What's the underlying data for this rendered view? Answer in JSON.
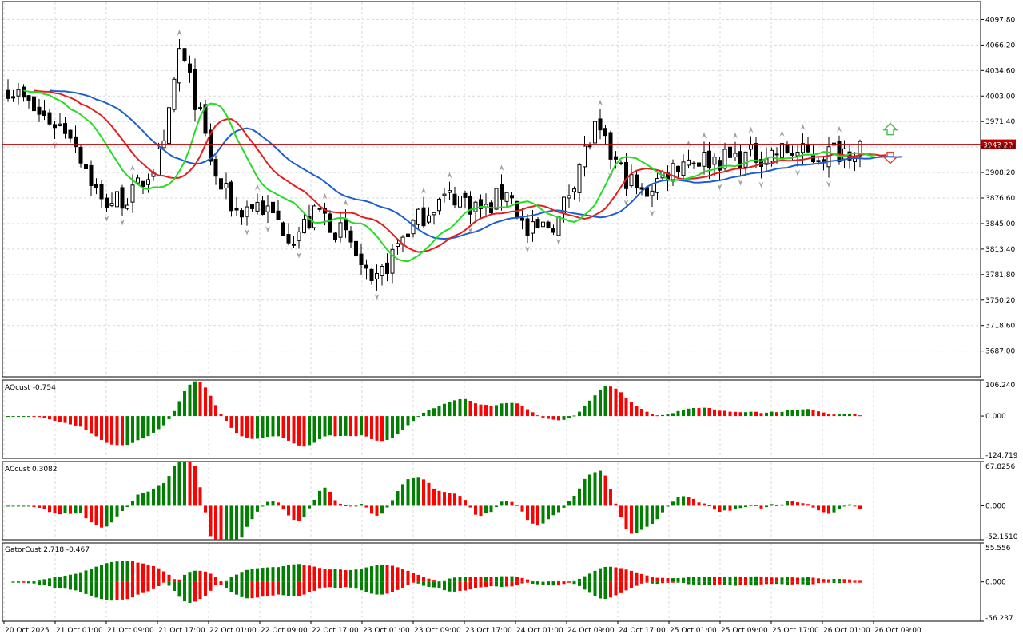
{
  "colors": {
    "bull": "#008000",
    "bear": "#ff0000",
    "candle_body": "#000000",
    "jaw": "#1e5fd0",
    "teeth": "#e31e1e",
    "lips": "#22dd22",
    "current_price_line": "#b80000",
    "fractal": "#a0a0a0",
    "grid": "#d9d9d9",
    "frame": "#000000"
  },
  "main": {
    "current_price": "3943.29",
    "y_ticks": [
      "4097.80",
      "4066.20",
      "4034.60",
      "4003.00",
      "3971.40",
      "3939.80",
      "3908.20",
      "3876.60",
      "3845.00",
      "3813.40",
      "3781.80",
      "3750.20",
      "3718.60",
      "3687.00"
    ],
    "ylim": [
      3655,
      4120
    ],
    "current_value": 3943.29,
    "signals": [
      {
        "type": "up-arrow",
        "color": "#4fc04f"
      },
      {
        "type": "down-arrow",
        "color": "#e84030"
      }
    ]
  },
  "ao": {
    "label": "AOcust -0.754",
    "y_ticks": [
      "106.240",
      "0.000",
      "-124.719"
    ],
    "ylim": [
      -124.719,
      106.24
    ]
  },
  "ac": {
    "label": "ACcust 0.3082",
    "y_ticks": [
      "67.8256",
      "0.000",
      "-52.1510"
    ],
    "ylim": [
      -52.151,
      67.8256
    ]
  },
  "gator": {
    "label": "GatorCust 2.718 -0.467",
    "y_ticks": [
      "55.556",
      "0.000",
      "-56.237"
    ],
    "ylim": [
      -56.237,
      55.556
    ]
  },
  "x_ticks": [
    "20 Oct 2025",
    "21 Oct 01:00",
    "21 Oct 09:00",
    "21 Oct 17:00",
    "22 Oct 01:00",
    "22 Oct 09:00",
    "22 Oct 17:00",
    "23 Oct 01:00",
    "23 Oct 09:00",
    "23 Oct 17:00",
    "24 Oct 01:00",
    "24 Oct 09:00",
    "24 Oct 17:00",
    "25 Oct 01:00",
    "25 Oct 09:00",
    "25 Oct 17:00",
    "26 Oct 01:00",
    "26 Oct 09:00"
  ],
  "chart_data": {
    "type": "candlestick",
    "bar_count": 165,
    "ohlc_key_points": [
      {
        "time": "20 Oct 2025",
        "close": 4010
      },
      {
        "time": "21 Oct 01:00",
        "close": 3870
      },
      {
        "time": "21 Oct 17:00",
        "close": 4050
      },
      {
        "time": "22 Oct 01:00",
        "close": 3860
      },
      {
        "time": "22 Oct 17:00",
        "close": 3800
      },
      {
        "time": "23 Oct 01:00",
        "close": 3760
      },
      {
        "time": "23 Oct 09:00",
        "close": 3880
      },
      {
        "time": "24 Oct 01:00",
        "close": 3850
      },
      {
        "time": "24 Oct 09:00",
        "close": 3960
      },
      {
        "time": "24 Oct 17:00",
        "close": 3890
      },
      {
        "time": "25 Oct 09:00",
        "close": 3925
      },
      {
        "time": "26 Oct 09:00",
        "close": 3943.29
      }
    ],
    "indicators": [
      "Alligator Jaw",
      "Alligator Teeth",
      "Alligator Lips",
      "Fractals",
      "AOcust",
      "ACcust",
      "GatorCust"
    ]
  }
}
